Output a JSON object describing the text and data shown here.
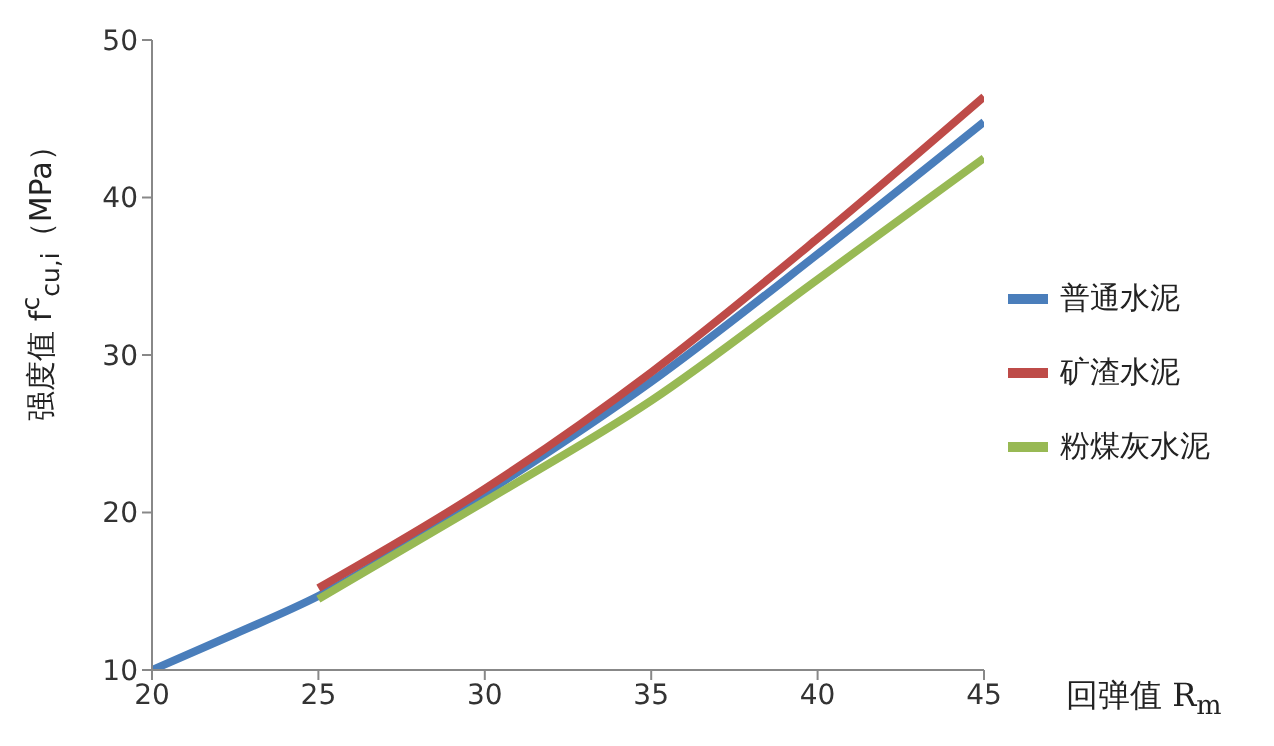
{
  "chart_data": {
    "type": "line",
    "xlabel": "回弹值 R$_{m}$",
    "ylabel": "强度值 f$^{c}$$_{cu,i}$（MPa）",
    "xlim": [
      20,
      45
    ],
    "xticks": [
      20,
      25,
      30,
      35,
      40,
      45
    ],
    "ylim": [
      10,
      50
    ],
    "yticks": [
      10,
      20,
      30,
      40,
      50
    ],
    "grid": false,
    "legend": "right",
    "marker": "none",
    "line_style": "solid",
    "series": [
      {
        "name": "普通水泥",
        "color": "#4a7ebb",
        "x": [
          20,
          22.5,
          25,
          30,
          35,
          40,
          45
        ],
        "values": [
          10,
          12.3,
          14.7,
          21.2,
          28.3,
          36.4,
          44.8
        ]
      },
      {
        "name": "矿渣水泥",
        "color": "#be4b48",
        "x": [
          25,
          30,
          35,
          40,
          45
        ],
        "values": [
          15.2,
          21.5,
          28.9,
          37.4,
          46.4
        ]
      },
      {
        "name": "粉煤灰水泥",
        "color": "#98b954",
        "x": [
          25,
          30,
          35,
          40,
          45
        ],
        "values": [
          14.5,
          20.7,
          27.1,
          34.8,
          42.5
        ]
      }
    ]
  }
}
